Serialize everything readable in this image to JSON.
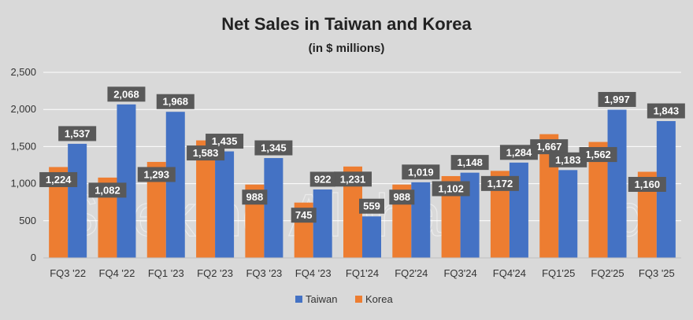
{
  "watermark": "Seeking Alpha",
  "watermark_symbol": "α",
  "chart_data": {
    "type": "bar",
    "title": "Net Sales in Taiwan and Korea",
    "subtitle": "(in $ millions)",
    "categories": [
      "FQ3 '22",
      "FQ4 '22",
      "FQ1 '23",
      "FQ2 '23",
      "FQ3 '23",
      "FQ4 '23",
      "FQ1'24",
      "FQ2'24",
      "FQ3'24",
      "FQ4'24",
      "FQ1'25",
      "FQ2'25",
      "FQ3 '25"
    ],
    "series": [
      {
        "name": "Korea",
        "color": "#ed7d31",
        "values": [
          1224,
          1082,
          1293,
          1583,
          988,
          745,
          1231,
          988,
          1102,
          1172,
          1667,
          1562,
          1160
        ]
      },
      {
        "name": "Taiwan",
        "color": "#4472c4",
        "values": [
          1537,
          2068,
          1968,
          1435,
          1345,
          922,
          559,
          1019,
          1148,
          1284,
          1183,
          1997,
          1843
        ]
      }
    ],
    "yticks": [
      "0",
      "500",
      "1,000",
      "1,500",
      "2,000",
      "2,500"
    ],
    "ylim": [
      0,
      2500
    ],
    "grid": true,
    "legend_position": "bottom",
    "legend_order": [
      "Taiwan",
      "Korea"
    ],
    "label_bg_color": "#595959"
  }
}
